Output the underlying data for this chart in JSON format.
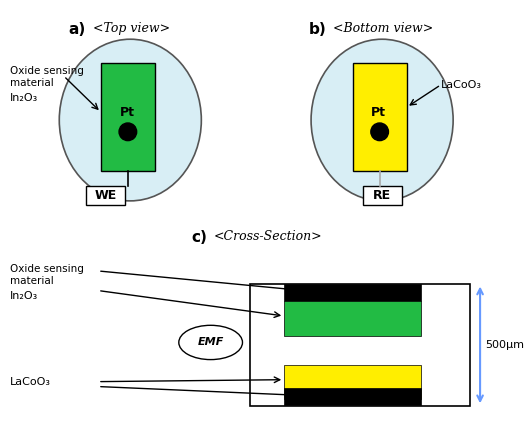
{
  "fig_width": 5.3,
  "fig_height": 4.38,
  "dpi": 100,
  "bg_color": "#ffffff",
  "ellipse_color": "#d8eef5",
  "ellipse_edge": "#555555",
  "green_color": "#22bb44",
  "yellow_color": "#ffee00",
  "black_color": "#000000",
  "white_color": "#ffffff",
  "blue_arrow_color": "#6699ff",
  "label_a": "a)",
  "label_b": "b)",
  "label_c": "c)",
  "title_a": "<Top view>",
  "title_b": "<Bottom view>",
  "title_c": "<Cross-Section>",
  "text_oxide": "Oxide sensing\nmaterial",
  "text_in2o3": "In₂O₃",
  "text_lacoo3": "LaCoO₃",
  "text_pt": "Pt",
  "text_we": "WE",
  "text_re": "RE",
  "text_emf": "EMF",
  "text_500um": "500μm"
}
